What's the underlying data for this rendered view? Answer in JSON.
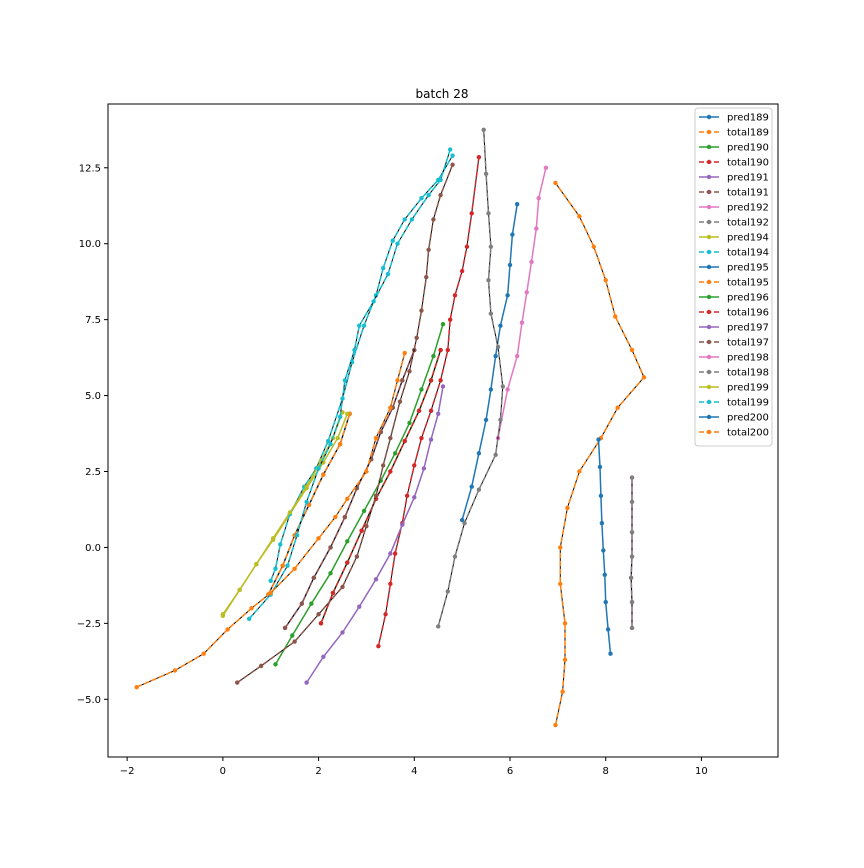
{
  "chart_data": {
    "type": "line",
    "title": "batch 28",
    "xlabel": "",
    "ylabel": "",
    "xlim": [
      -2.4,
      11.6
    ],
    "ylim": [
      -6.9,
      14.6
    ],
    "xticks": [
      -2,
      0,
      2,
      4,
      6,
      8,
      10
    ],
    "yticks": [
      -5.0,
      -2.5,
      0.0,
      2.5,
      5.0,
      7.5,
      10.0,
      12.5
    ],
    "xtick_labels": [
      "−2",
      "0",
      "2",
      "4",
      "6",
      "8",
      "10"
    ],
    "ytick_labels": [
      "−5.0",
      "−2.5",
      "0.0",
      "2.5",
      "5.0",
      "7.5",
      "10.0",
      "12.5"
    ],
    "grid": false,
    "legend_position": "top-right",
    "series": [
      {
        "name": "pred189",
        "color": "#1f77b4",
        "style": "solid",
        "points": [
          [
            0.95,
            -1.55
          ],
          [
            1.25,
            -0.6
          ],
          [
            1.5,
            0.4
          ],
          [
            1.8,
            1.4
          ],
          [
            2.1,
            2.4
          ],
          [
            2.45,
            3.4
          ],
          [
            2.65,
            4.4
          ]
        ]
      },
      {
        "name": "total189",
        "color": "#ff7f0e",
        "style": "dashed",
        "points": [
          [
            0.95,
            -1.55
          ],
          [
            1.25,
            -0.6
          ],
          [
            1.5,
            0.4
          ],
          [
            1.8,
            1.4
          ],
          [
            2.1,
            2.4
          ],
          [
            2.45,
            3.4
          ],
          [
            2.65,
            4.4
          ]
        ]
      },
      {
        "name": "pred190",
        "color": "#2ca02c",
        "style": "solid",
        "points": [
          [
            2.05,
            -2.5
          ],
          [
            2.3,
            -1.5
          ],
          [
            2.6,
            -0.5
          ],
          [
            2.9,
            0.55
          ],
          [
            3.2,
            1.6
          ],
          [
            3.5,
            2.5
          ],
          [
            3.8,
            3.5
          ],
          [
            4.1,
            4.5
          ],
          [
            4.35,
            5.5
          ],
          [
            4.55,
            6.5
          ]
        ]
      },
      {
        "name": "total190",
        "color": "#d62728",
        "style": "dashed",
        "points": [
          [
            2.05,
            -2.5
          ],
          [
            2.3,
            -1.5
          ],
          [
            2.6,
            -0.5
          ],
          [
            2.9,
            0.55
          ],
          [
            3.2,
            1.6
          ],
          [
            3.5,
            2.5
          ],
          [
            3.8,
            3.5
          ],
          [
            4.1,
            4.5
          ],
          [
            4.35,
            5.5
          ],
          [
            4.55,
            6.5
          ]
        ]
      },
      {
        "name": "pred191",
        "color": "#9467bd",
        "style": "solid",
        "points": [
          [
            1.3,
            -2.65
          ],
          [
            1.65,
            -1.85
          ],
          [
            1.9,
            -1.0
          ],
          [
            2.25,
            0.0
          ],
          [
            2.55,
            1.0
          ],
          [
            2.8,
            1.95
          ],
          [
            3.1,
            2.9
          ],
          [
            3.3,
            3.8
          ],
          [
            3.55,
            4.6
          ],
          [
            3.75,
            5.5
          ],
          [
            4.0,
            6.5
          ]
        ]
      },
      {
        "name": "total191",
        "color": "#8c564b",
        "style": "dashed",
        "points": [
          [
            1.3,
            -2.65
          ],
          [
            1.65,
            -1.85
          ],
          [
            1.9,
            -1.0
          ],
          [
            2.25,
            0.0
          ],
          [
            2.55,
            1.0
          ],
          [
            2.8,
            1.95
          ],
          [
            3.1,
            2.9
          ],
          [
            3.3,
            3.8
          ],
          [
            3.55,
            4.6
          ],
          [
            3.75,
            5.5
          ],
          [
            4.0,
            6.5
          ]
        ]
      },
      {
        "name": "pred192",
        "color": "#e377c2",
        "style": "solid",
        "points": [
          [
            8.55,
            -2.65
          ],
          [
            8.55,
            -1.8
          ],
          [
            8.53,
            -1.0
          ],
          [
            8.55,
            -0.3
          ],
          [
            8.55,
            0.5
          ],
          [
            8.55,
            1.5
          ],
          [
            8.55,
            2.3
          ]
        ]
      },
      {
        "name": "total192",
        "color": "#7f7f7f",
        "style": "dashed",
        "points": [
          [
            8.55,
            -2.65
          ],
          [
            8.55,
            -1.8
          ],
          [
            8.53,
            -1.0
          ],
          [
            8.55,
            -0.3
          ],
          [
            8.55,
            0.5
          ],
          [
            8.55,
            1.5
          ],
          [
            8.55,
            2.3
          ]
        ]
      },
      {
        "name": "pred194",
        "color": "#bcbd22",
        "style": "solid",
        "points": [
          [
            0.0,
            -2.2
          ],
          [
            0.35,
            -1.4
          ],
          [
            0.7,
            -0.55
          ],
          [
            1.05,
            0.25
          ],
          [
            1.4,
            1.1
          ],
          [
            1.75,
            1.95
          ],
          [
            2.1,
            2.8
          ],
          [
            2.4,
            3.6
          ],
          [
            2.6,
            4.4
          ]
        ]
      },
      {
        "name": "total194",
        "color": "#17becf",
        "style": "dashed",
        "points": [
          [
            1.0,
            -1.1
          ],
          [
            1.1,
            -0.7
          ],
          [
            1.2,
            0.1
          ],
          [
            1.4,
            1.1
          ],
          [
            1.7,
            2.0
          ],
          [
            1.95,
            2.6
          ],
          [
            2.2,
            3.5
          ],
          [
            2.5,
            4.9
          ],
          [
            2.7,
            6.1
          ],
          [
            2.95,
            7.3
          ],
          [
            3.2,
            8.3
          ],
          [
            3.35,
            9.2
          ],
          [
            3.55,
            10.1
          ],
          [
            3.8,
            10.8
          ],
          [
            4.15,
            11.5
          ],
          [
            4.5,
            12.1
          ],
          [
            4.8,
            12.9
          ]
        ]
      },
      {
        "name": "pred195",
        "color": "#1f77b4",
        "style": "solid",
        "points": [
          [
            5.0,
            0.9
          ],
          [
            5.2,
            2.0
          ],
          [
            5.35,
            3.1
          ],
          [
            5.5,
            4.2
          ],
          [
            5.6,
            5.2
          ],
          [
            5.7,
            6.3
          ],
          [
            5.8,
            7.3
          ],
          [
            5.95,
            8.3
          ],
          [
            6.0,
            9.3
          ],
          [
            6.05,
            10.3
          ],
          [
            6.15,
            11.3
          ]
        ]
      },
      {
        "name": "total195",
        "color": "#ff7f0e",
        "style": "dashed",
        "points": [
          [
            6.95,
            -5.85
          ],
          [
            7.1,
            -4.75
          ],
          [
            7.15,
            -3.7
          ],
          [
            7.15,
            -2.5
          ],
          [
            7.05,
            -1.2
          ],
          [
            7.05,
            0.0
          ],
          [
            7.2,
            1.3
          ],
          [
            7.45,
            2.5
          ],
          [
            7.9,
            3.6
          ],
          [
            8.25,
            4.6
          ],
          [
            8.8,
            5.6
          ],
          [
            8.55,
            6.5
          ],
          [
            8.2,
            7.6
          ],
          [
            8.0,
            8.8
          ],
          [
            7.75,
            9.9
          ],
          [
            7.45,
            10.9
          ],
          [
            6.95,
            12.0
          ]
        ]
      },
      {
        "name": "pred196",
        "color": "#2ca02c",
        "style": "solid",
        "points": [
          [
            1.1,
            -3.85
          ],
          [
            1.45,
            -2.9
          ],
          [
            1.85,
            -1.85
          ],
          [
            2.25,
            -0.85
          ],
          [
            2.6,
            0.2
          ],
          [
            2.95,
            1.2
          ],
          [
            3.3,
            2.2
          ],
          [
            3.6,
            3.1
          ],
          [
            3.9,
            4.1
          ],
          [
            4.15,
            5.2
          ],
          [
            4.4,
            6.3
          ],
          [
            4.6,
            7.35
          ]
        ]
      },
      {
        "name": "total196",
        "color": "#d62728",
        "style": "dashed",
        "points": [
          [
            3.25,
            -3.25
          ],
          [
            3.4,
            -2.2
          ],
          [
            3.5,
            -1.2
          ],
          [
            3.6,
            -0.2
          ],
          [
            3.75,
            0.8
          ],
          [
            3.85,
            1.7
          ],
          [
            4.0,
            2.7
          ],
          [
            4.15,
            3.6
          ],
          [
            4.35,
            4.5
          ],
          [
            4.55,
            5.5
          ],
          [
            4.7,
            6.5
          ],
          [
            4.75,
            7.5
          ],
          [
            4.85,
            8.3
          ],
          [
            5.0,
            9.1
          ],
          [
            5.1,
            9.9
          ],
          [
            5.2,
            11.0
          ],
          [
            5.35,
            12.85
          ]
        ]
      },
      {
        "name": "pred197",
        "color": "#9467bd",
        "style": "solid",
        "points": [
          [
            1.75,
            -4.45
          ],
          [
            2.1,
            -3.6
          ],
          [
            2.5,
            -2.8
          ],
          [
            2.85,
            -1.95
          ],
          [
            3.2,
            -1.05
          ],
          [
            3.5,
            -0.2
          ],
          [
            3.75,
            0.75
          ],
          [
            4.0,
            1.65
          ],
          [
            4.2,
            2.6
          ],
          [
            4.35,
            3.55
          ],
          [
            4.5,
            4.4
          ],
          [
            4.6,
            5.3
          ]
        ]
      },
      {
        "name": "total197",
        "color": "#8c564b",
        "style": "dashed",
        "points": [
          [
            0.3,
            -4.45
          ],
          [
            0.8,
            -3.9
          ],
          [
            1.5,
            -3.1
          ],
          [
            2.0,
            -2.2
          ],
          [
            2.5,
            -1.3
          ],
          [
            2.8,
            -0.3
          ],
          [
            3.0,
            0.7
          ],
          [
            3.2,
            1.7
          ],
          [
            3.35,
            2.7
          ],
          [
            3.5,
            3.6
          ],
          [
            3.7,
            4.8
          ],
          [
            3.9,
            5.8
          ],
          [
            4.05,
            6.9
          ],
          [
            4.15,
            7.8
          ],
          [
            4.25,
            8.9
          ],
          [
            4.3,
            9.8
          ],
          [
            4.4,
            10.8
          ],
          [
            4.55,
            11.6
          ],
          [
            4.8,
            12.6
          ]
        ]
      },
      {
        "name": "pred198",
        "color": "#e377c2",
        "style": "solid",
        "points": [
          [
            5.75,
            3.6
          ],
          [
            5.95,
            5.2
          ],
          [
            6.15,
            6.3
          ],
          [
            6.25,
            7.4
          ],
          [
            6.35,
            8.4
          ],
          [
            6.45,
            9.4
          ],
          [
            6.55,
            10.5
          ],
          [
            6.6,
            11.5
          ],
          [
            6.75,
            12.5
          ]
        ]
      },
      {
        "name": "total198",
        "color": "#7f7f7f",
        "style": "dashed",
        "points": [
          [
            4.5,
            -2.6
          ],
          [
            4.7,
            -1.45
          ],
          [
            4.85,
            -0.3
          ],
          [
            5.05,
            0.8
          ],
          [
            5.35,
            1.9
          ],
          [
            5.7,
            3.05
          ],
          [
            5.8,
            4.2
          ],
          [
            5.85,
            5.3
          ],
          [
            5.75,
            6.6
          ],
          [
            5.6,
            7.7
          ],
          [
            5.55,
            8.8
          ],
          [
            5.6,
            9.9
          ],
          [
            5.55,
            11.0
          ],
          [
            5.5,
            12.3
          ],
          [
            5.45,
            13.75
          ]
        ]
      },
      {
        "name": "pred199",
        "color": "#bcbd22",
        "style": "solid",
        "points": [
          [
            0.0,
            -2.25
          ],
          [
            0.35,
            -1.4
          ],
          [
            0.7,
            -0.55
          ],
          [
            1.05,
            0.3
          ],
          [
            1.4,
            1.15
          ],
          [
            1.75,
            2.0
          ],
          [
            2.05,
            2.85
          ],
          [
            2.3,
            3.6
          ],
          [
            2.5,
            4.45
          ]
        ]
      },
      {
        "name": "total199",
        "color": "#17becf",
        "style": "dashed",
        "points": [
          [
            0.55,
            -2.35
          ],
          [
            1.0,
            -1.55
          ],
          [
            1.35,
            -0.6
          ],
          [
            1.55,
            0.4
          ],
          [
            1.75,
            1.5
          ],
          [
            2.0,
            2.6
          ],
          [
            2.25,
            3.4
          ],
          [
            2.45,
            4.3
          ],
          [
            2.55,
            5.5
          ],
          [
            2.75,
            6.5
          ],
          [
            2.85,
            7.3
          ],
          [
            3.15,
            8.1
          ],
          [
            3.45,
            9.0
          ],
          [
            3.65,
            10.0
          ],
          [
            3.95,
            10.8
          ],
          [
            4.3,
            11.6
          ],
          [
            4.55,
            12.1
          ],
          [
            4.75,
            13.1
          ]
        ]
      },
      {
        "name": "pred200",
        "color": "#1f77b4",
        "style": "solid",
        "points": [
          [
            8.1,
            -3.5
          ],
          [
            8.05,
            -2.7
          ],
          [
            8.0,
            -1.8
          ],
          [
            7.98,
            -0.9
          ],
          [
            7.95,
            -0.1
          ],
          [
            7.92,
            0.8
          ],
          [
            7.9,
            1.7
          ],
          [
            7.88,
            2.65
          ],
          [
            7.85,
            3.55
          ]
        ]
      },
      {
        "name": "total200",
        "color": "#ff7f0e",
        "style": "dashed",
        "points": [
          [
            -1.8,
            -4.6
          ],
          [
            -1.0,
            -4.05
          ],
          [
            -0.4,
            -3.5
          ],
          [
            0.1,
            -2.7
          ],
          [
            0.6,
            -2.0
          ],
          [
            1.0,
            -1.5
          ],
          [
            1.5,
            -0.7
          ],
          [
            2.0,
            0.3
          ],
          [
            2.35,
            1.0
          ],
          [
            2.6,
            1.6
          ],
          [
            3.0,
            2.5
          ],
          [
            3.2,
            3.6
          ],
          [
            3.5,
            4.6
          ],
          [
            3.65,
            5.5
          ],
          [
            3.8,
            6.4
          ]
        ]
      }
    ]
  }
}
